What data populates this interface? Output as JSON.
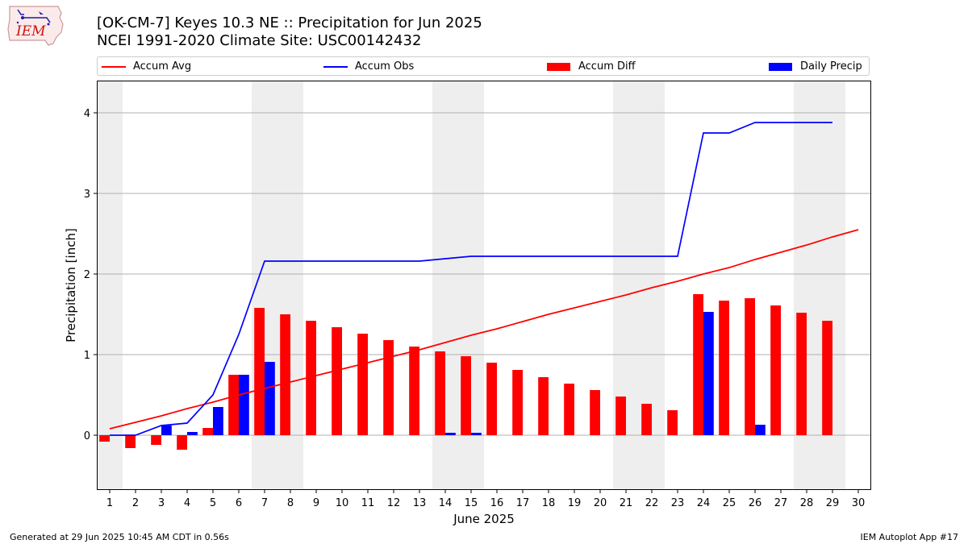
{
  "header": {
    "title_line1": "[OK-CM-7] Keyes 10.3 NE :: Precipitation for Jun 2025",
    "title_line2": "NCEI 1991-2020 Climate Site: USC00142432"
  },
  "logo": {
    "text": "IEM"
  },
  "footer": {
    "left": "Generated at 29 Jun 2025 10:45 AM CDT in 0.56s",
    "right": "IEM Autoplot App #17"
  },
  "colors": {
    "accum_avg": "#ff0000",
    "accum_obs": "#0000ff",
    "accum_diff": "#ff0000",
    "daily_precip": "#0000ff",
    "weekend_shade": "#eeeeee",
    "grid": "#b0b0b0"
  },
  "chart_data": {
    "type": "bar",
    "xlabel": "June 2025",
    "ylabel": "Precipitation [inch]",
    "ylim": [
      -0.68,
      4.4
    ],
    "yticks": [
      0,
      1,
      2,
      3,
      4
    ],
    "xlim": [
      0.5,
      30.5
    ],
    "grid": "y",
    "legend_position": "top",
    "days": [
      1,
      2,
      3,
      4,
      5,
      6,
      7,
      8,
      9,
      10,
      11,
      12,
      13,
      14,
      15,
      16,
      17,
      18,
      19,
      20,
      21,
      22,
      23,
      24,
      25,
      26,
      27,
      28,
      29,
      30
    ],
    "weekend_shading_days": [
      1,
      7,
      8,
      14,
      15,
      21,
      22,
      28,
      29
    ],
    "series": [
      {
        "name": "Accum Avg",
        "kind": "line",
        "x": [
          1,
          2,
          3,
          4,
          5,
          6,
          7,
          8,
          9,
          10,
          11,
          12,
          13,
          14,
          15,
          16,
          17,
          18,
          19,
          20,
          21,
          22,
          23,
          24,
          25,
          26,
          27,
          28,
          29,
          30
        ],
        "values": [
          0.08,
          0.16,
          0.24,
          0.33,
          0.41,
          0.5,
          0.58,
          0.66,
          0.74,
          0.82,
          0.9,
          0.98,
          1.06,
          1.15,
          1.24,
          1.32,
          1.41,
          1.5,
          1.58,
          1.66,
          1.74,
          1.83,
          1.91,
          2.0,
          2.08,
          2.18,
          2.27,
          2.36,
          2.46,
          2.55
        ]
      },
      {
        "name": "Accum Obs",
        "kind": "line",
        "x": [
          1,
          2,
          3,
          4,
          5,
          6,
          7,
          8,
          9,
          10,
          11,
          12,
          13,
          14,
          15,
          16,
          17,
          18,
          19,
          20,
          21,
          22,
          23,
          24,
          25,
          26,
          27,
          28,
          29
        ],
        "values": [
          0.0,
          0.0,
          0.12,
          0.15,
          0.5,
          1.25,
          2.16,
          2.16,
          2.16,
          2.16,
          2.16,
          2.16,
          2.16,
          2.19,
          2.22,
          2.22,
          2.22,
          2.22,
          2.22,
          2.22,
          2.22,
          2.22,
          2.22,
          3.75,
          3.75,
          3.88,
          3.88,
          3.88,
          3.88
        ]
      },
      {
        "name": "Accum Diff",
        "kind": "bar",
        "x": [
          1,
          2,
          3,
          4,
          5,
          6,
          7,
          8,
          9,
          10,
          11,
          12,
          13,
          14,
          15,
          16,
          17,
          18,
          19,
          20,
          21,
          22,
          23,
          24,
          25,
          26,
          27,
          28,
          29
        ],
        "values": [
          -0.08,
          -0.16,
          -0.12,
          -0.18,
          0.09,
          0.75,
          1.58,
          1.5,
          1.42,
          1.34,
          1.26,
          1.18,
          1.1,
          1.04,
          0.98,
          0.9,
          0.81,
          0.72,
          0.64,
          0.56,
          0.48,
          0.39,
          0.31,
          1.75,
          1.67,
          1.7,
          1.61,
          1.52,
          1.42
        ]
      },
      {
        "name": "Daily Precip",
        "kind": "bar",
        "x": [
          1,
          2,
          3,
          4,
          5,
          6,
          7,
          8,
          9,
          10,
          11,
          12,
          13,
          14,
          15,
          16,
          17,
          18,
          19,
          20,
          21,
          22,
          23,
          24,
          25,
          26,
          27,
          28,
          29
        ],
        "values": [
          0,
          0,
          0.12,
          0.04,
          0.35,
          0.75,
          0.91,
          0,
          0,
          0,
          0,
          0,
          0,
          0.03,
          0.03,
          0,
          0,
          0,
          0,
          0,
          0,
          0,
          0,
          1.53,
          0,
          0.13,
          0,
          0,
          0
        ]
      }
    ]
  }
}
